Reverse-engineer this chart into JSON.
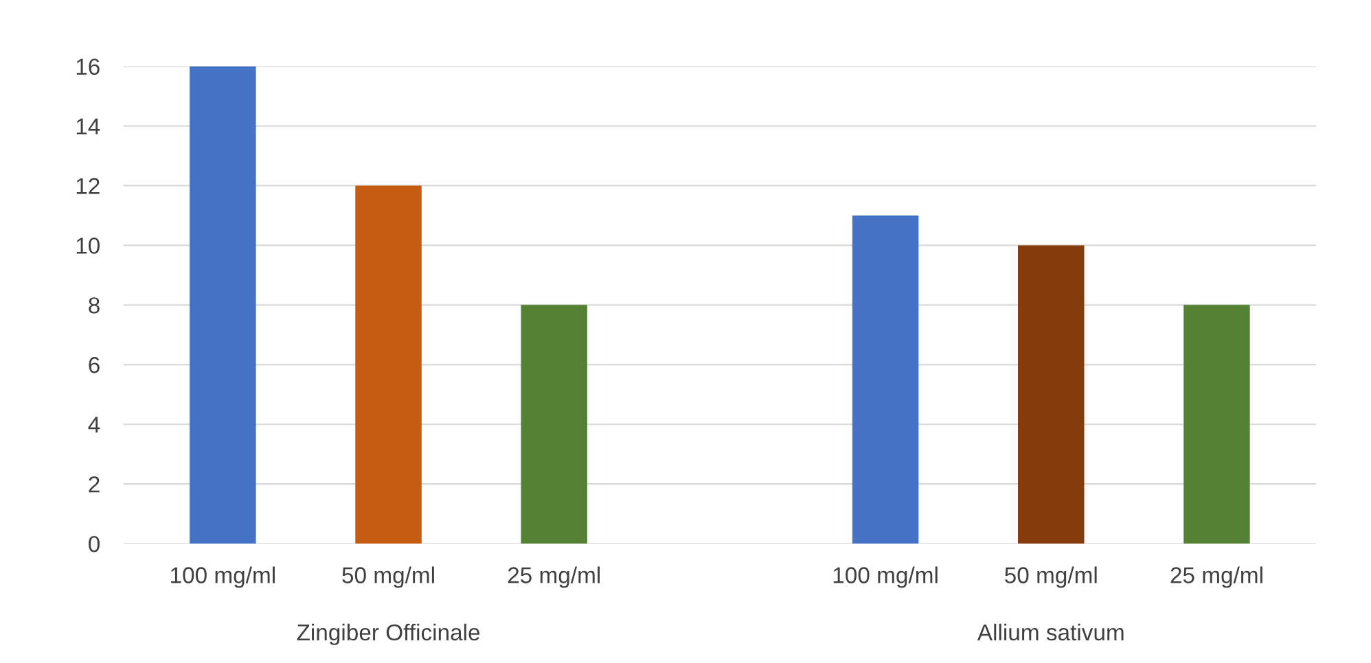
{
  "chart_data": {
    "type": "bar",
    "categories": [
      "100 mg/ml",
      "50 mg/ml",
      "25 mg/ml",
      null,
      "100 mg/ml",
      "50 mg/ml",
      "25 mg/ml"
    ],
    "values": [
      16,
      12,
      8,
      null,
      11,
      10,
      8
    ],
    "colors": [
      "#4472c4",
      "#c55a11",
      "#548235",
      "#ffffff",
      "#4472c4",
      "#843c0c",
      "#548235"
    ],
    "ylim": [
      0,
      16
    ],
    "yticks": [
      0,
      2,
      4,
      6,
      8,
      10,
      12,
      14,
      16
    ],
    "grid": "y",
    "annotations": [
      "Zingiber Officinale",
      "Allium sativum"
    ]
  }
}
